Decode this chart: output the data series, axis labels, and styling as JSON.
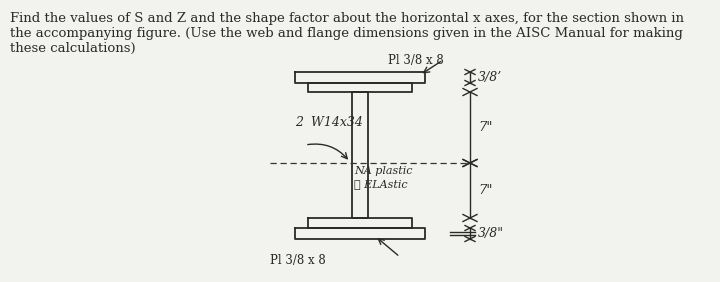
{
  "title_line1": "Find the values of S and Z and the shape factor about the horizontal x axes, for the section shown in",
  "title_line2": "the accompanying figure. (Use the web and flange dimensions given in the AISC Manual for making",
  "title_line3": "these calculations)",
  "title_fontsize": 9.5,
  "bg_color": "#f2f2ee",
  "fig_width": 7.2,
  "fig_height": 2.82,
  "label_top_plate": "Pl 3/8 x 8",
  "label_bottom_plate": "Pl 3/8 x 8",
  "label_w_section": "2  W14x34",
  "label_na_1": "NA plastic",
  "label_na_2": "ℓ ELAstic",
  "label_top_dim": "3/8’",
  "label_mid_dim_top": "7\"",
  "label_mid_dim_bot": "7\"",
  "label_bot_dim": "3/8\"",
  "line_color": "#2a2a2a",
  "dim_line_color": "#2a2a2a",
  "dash_color": "#333333"
}
